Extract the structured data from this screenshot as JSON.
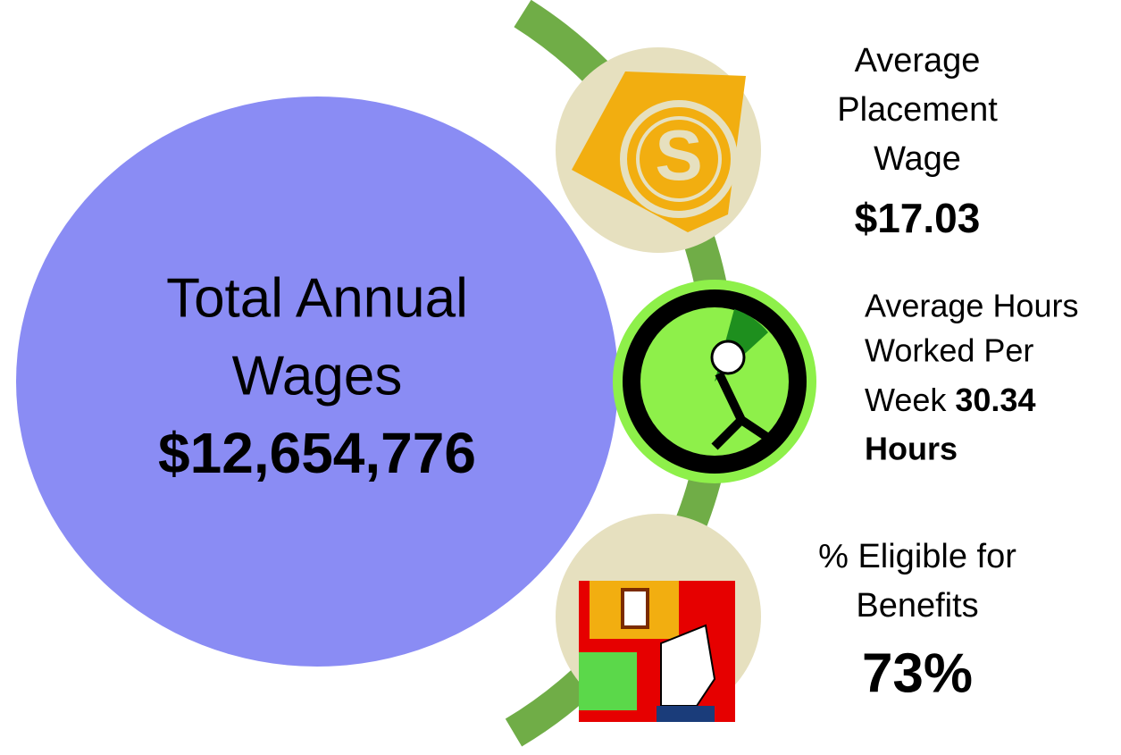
{
  "main": {
    "title_lines": [
      "Total Annual",
      "Wages"
    ],
    "value": "$12,654,776"
  },
  "items": [
    {
      "label_lines": [
        "Average",
        "Placement",
        "Wage"
      ],
      "value_lines": [
        "$17.03"
      ]
    },
    {
      "label_lines": [
        "Average Hours",
        "Worked Per",
        "Week"
      ],
      "value_lines": [
        "30.34",
        "Hours"
      ]
    },
    {
      "label_lines": [
        "% Eligible for",
        "Benefits"
      ],
      "value_lines": [
        "73%"
      ]
    }
  ]
}
